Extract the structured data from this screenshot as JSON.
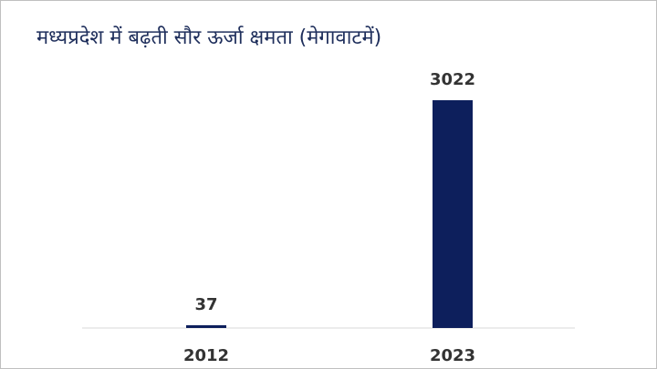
{
  "chart_data": {
    "type": "bar",
    "title": "मध्यप्रदेश में बढ़ती सौर ऊर्जा क्षमता (मेगावाटमें)",
    "categories": [
      "2012",
      "2023"
    ],
    "values": [
      37,
      3022
    ],
    "color": "#0d1f5c"
  }
}
